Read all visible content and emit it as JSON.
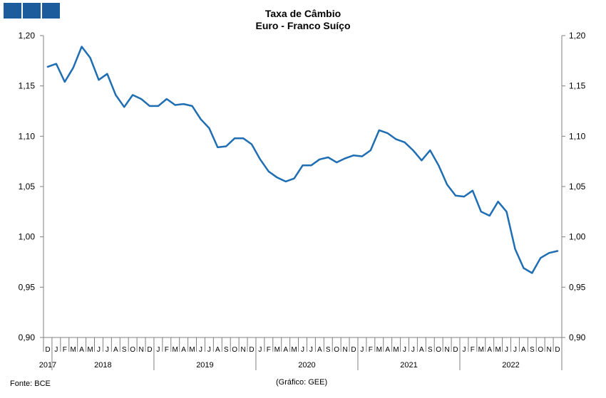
{
  "header": {
    "title": "Taxa de Câmbio",
    "subtitle": "Euro - Franco Suíço"
  },
  "footer": {
    "source": "Fonte: BCE",
    "credit": "(Gráfico: GEE)"
  },
  "colors": {
    "line": "#1f6eb3",
    "brand": "#1d5c9c",
    "axis": "#808080"
  },
  "chart_data": {
    "type": "line",
    "title": "Taxa de Câmbio",
    "subtitle": "Euro - Franco Suíço",
    "ylim": [
      0.9,
      1.2
    ],
    "y_ticks": [
      "0,90",
      "0,95",
      "1,00",
      "1,05",
      "1,10",
      "1,15",
      "1,20"
    ],
    "dual_y_axis": true,
    "grid": false,
    "month_labels": [
      "D",
      "J",
      "F",
      "M",
      "A",
      "M",
      "J",
      "J",
      "A",
      "S",
      "O",
      "N",
      "D",
      "J",
      "F",
      "M",
      "A",
      "M",
      "J",
      "J",
      "A",
      "S",
      "O",
      "N",
      "D",
      "J",
      "F",
      "M",
      "A",
      "M",
      "J",
      "J",
      "A",
      "S",
      "O",
      "N",
      "D",
      "J",
      "F",
      "M",
      "A",
      "M",
      "J",
      "J",
      "A",
      "S",
      "O",
      "N",
      "D",
      "J",
      "F",
      "M",
      "A",
      "M",
      "J",
      "J",
      "A",
      "S",
      "O",
      "N",
      "D"
    ],
    "year_labels": [
      {
        "label": "2017",
        "from": 0,
        "to": 0
      },
      {
        "label": "2018",
        "from": 1,
        "to": 12
      },
      {
        "label": "2019",
        "from": 13,
        "to": 24
      },
      {
        "label": "2020",
        "from": 25,
        "to": 36
      },
      {
        "label": "2021",
        "from": 37,
        "to": 48
      },
      {
        "label": "2022",
        "from": 49,
        "to": 60
      }
    ],
    "x": [
      "2017-12",
      "2018-01",
      "2018-02",
      "2018-03",
      "2018-04",
      "2018-05",
      "2018-06",
      "2018-07",
      "2018-08",
      "2018-09",
      "2018-10",
      "2018-11",
      "2018-12",
      "2019-01",
      "2019-02",
      "2019-03",
      "2019-04",
      "2019-05",
      "2019-06",
      "2019-07",
      "2019-08",
      "2019-09",
      "2019-10",
      "2019-11",
      "2019-12",
      "2020-01",
      "2020-02",
      "2020-03",
      "2020-04",
      "2020-05",
      "2020-06",
      "2020-07",
      "2020-08",
      "2020-09",
      "2020-10",
      "2020-11",
      "2020-12",
      "2021-01",
      "2021-02",
      "2021-03",
      "2021-04",
      "2021-05",
      "2021-06",
      "2021-07",
      "2021-08",
      "2021-09",
      "2021-10",
      "2021-11",
      "2021-12",
      "2022-01",
      "2022-02",
      "2022-03",
      "2022-04",
      "2022-05",
      "2022-06",
      "2022-07",
      "2022-08",
      "2022-09",
      "2022-10",
      "2022-11",
      "2022-12"
    ],
    "series": [
      {
        "values": [
          1.169,
          1.172,
          1.154,
          1.168,
          1.189,
          1.178,
          1.156,
          1.162,
          1.141,
          1.129,
          1.141,
          1.137,
          1.13,
          1.13,
          1.137,
          1.131,
          1.132,
          1.13,
          1.117,
          1.108,
          1.089,
          1.09,
          1.098,
          1.098,
          1.092,
          1.077,
          1.065,
          1.059,
          1.055,
          1.058,
          1.071,
          1.071,
          1.077,
          1.079,
          1.074,
          1.078,
          1.081,
          1.08,
          1.086,
          1.106,
          1.103,
          1.097,
          1.094,
          1.086,
          1.076,
          1.086,
          1.071,
          1.052,
          1.041,
          1.04,
          1.046,
          1.025,
          1.021,
          1.035,
          1.025,
          0.988,
          0.969,
          0.964,
          0.979,
          0.984,
          0.986
        ]
      }
    ]
  }
}
